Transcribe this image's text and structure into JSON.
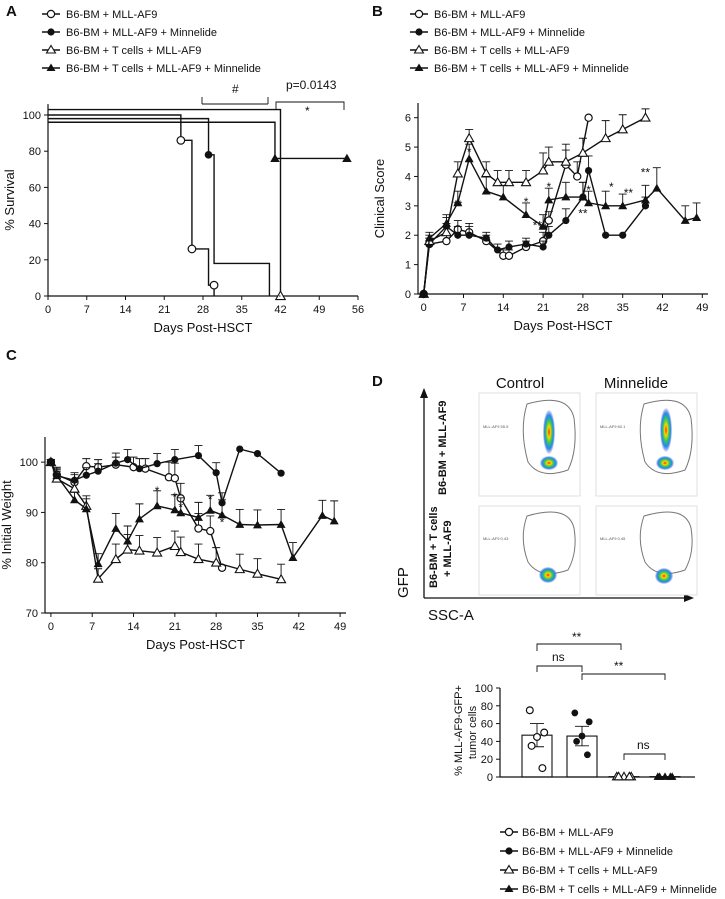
{
  "legend_labels": [
    "B6-BM + MLL-AF9",
    "B6-BM + MLL-AF9 + Minnelide",
    "B6-BM + T cells + MLL-AF9",
    "B6-BM + T cells + MLL-AF9 + Minnelide"
  ],
  "panels": {
    "A": {
      "label": "A",
      "pvalue": "p=0.0143",
      "hash": "#",
      "star": "*"
    },
    "B": {
      "label": "B"
    },
    "C": {
      "label": "C"
    },
    "D": {
      "label": "D",
      "col_control": "Control",
      "col_minnelide": "Minnelide",
      "row1": "B6-BM + MLL-AF9",
      "row2_line1": "B6-BM + T cells",
      "row2_line2": "+ MLL-AF9",
      "gfp": "GFP",
      "ssca": "SSC-A",
      "gate_top_left": "MLL-AF9 55.9",
      "gate_top_right": "MLL-AF9 60.1",
      "gate_bot_left": "MLL-AF9 0.43",
      "gate_bot_right": "MLL-AF9 0.45",
      "ns": "ns",
      "dstar": "**"
    }
  },
  "chart_data": [
    {
      "id": "A",
      "type": "line",
      "subtype": "kaplan-meier",
      "xlabel": "Days Post-HSCT",
      "ylabel": "% Survival",
      "xlim": [
        0,
        56
      ],
      "ylim": [
        0,
        100
      ],
      "xticks": [
        0,
        7,
        14,
        21,
        28,
        35,
        42,
        49,
        56
      ],
      "yticks": [
        0,
        20,
        40,
        60,
        80,
        100
      ],
      "series": [
        {
          "name": "B6-BM + MLL-AF9",
          "marker": "open-circle",
          "steps": [
            [
              0,
              100
            ],
            [
              24,
              100
            ],
            [
              24,
              86
            ],
            [
              26,
              86
            ],
            [
              26,
              26
            ],
            [
              29,
              26
            ],
            [
              29,
              6
            ],
            [
              30,
              6
            ],
            [
              30,
              0
            ]
          ],
          "marks": [
            [
              24,
              86
            ],
            [
              26,
              26
            ],
            [
              30,
              6
            ]
          ]
        },
        {
          "name": "B6-BM + MLL-AF9 + Minnelide",
          "marker": "filled-circle",
          "steps": [
            [
              0,
              98
            ],
            [
              29,
              98
            ],
            [
              29,
              78
            ],
            [
              30,
              78
            ],
            [
              30,
              18
            ],
            [
              40,
              18
            ],
            [
              40,
              0
            ]
          ],
          "marks": [
            [
              29,
              78
            ]
          ]
        },
        {
          "name": "B6-BM + T cells + MLL-AF9",
          "marker": "open-triangle",
          "steps": [
            [
              0,
              103
            ],
            [
              42,
              103
            ],
            [
              42,
              0
            ]
          ],
          "marks": [
            [
              42,
              0
            ]
          ]
        },
        {
          "name": "B6-BM + T cells + MLL-AF9 + Minnelide",
          "marker": "filled-triangle",
          "steps": [
            [
              0,
              96
            ],
            [
              41,
              96
            ],
            [
              41,
              76
            ],
            [
              54,
              76
            ]
          ],
          "marks": [
            [
              41,
              76
            ],
            [
              54,
              76
            ]
          ]
        }
      ],
      "annotations": [
        "#",
        "p=0.0143",
        "*"
      ]
    },
    {
      "id": "B",
      "type": "line",
      "xlabel": "Days Post-HSCT",
      "ylabel": "Clinical Score",
      "xlim": [
        -1,
        50
      ],
      "ylim": [
        0,
        6.5
      ],
      "xticks": [
        0,
        7,
        14,
        21,
        28,
        35,
        42,
        49
      ],
      "yticks": [
        0,
        1,
        2,
        3,
        4,
        5,
        6
      ],
      "series": [
        {
          "name": "B6-BM + MLL-AF9",
          "marker": "open-circle",
          "x": [
            0,
            1,
            4,
            6,
            8,
            11,
            14,
            15,
            18,
            21,
            22,
            25,
            27,
            29
          ],
          "y": [
            0,
            1.7,
            1.8,
            2.2,
            2.1,
            1.8,
            1.3,
            1.3,
            1.6,
            1.8,
            2.5,
            4.4,
            4.0,
            6.0
          ],
          "err": [
            0,
            0.2,
            0.2,
            0.3,
            0.3,
            0.2,
            0.2,
            0.2,
            0.2,
            0.3,
            0.3,
            0.5,
            0.5,
            0
          ]
        },
        {
          "name": "B6-BM + MLL-AF9 + Minnelide",
          "marker": "filled-circle",
          "x": [
            0,
            1,
            4,
            6,
            8,
            11,
            13,
            15,
            18,
            21,
            22,
            25,
            28,
            29,
            32,
            35,
            39
          ],
          "y": [
            0,
            1.7,
            2.3,
            2.0,
            2.0,
            1.9,
            1.5,
            1.6,
            1.7,
            1.6,
            2.0,
            2.5,
            3.3,
            4.2,
            2.0,
            2.0,
            3.0
          ],
          "err": [
            0,
            0.2,
            0.3,
            0.3,
            0.3,
            0.2,
            0.2,
            0.2,
            0.2,
            0.2,
            0.3,
            0.4,
            0.5,
            0.5,
            0,
            0,
            0.3
          ]
        },
        {
          "name": "B6-BM + T cells + MLL-AF9",
          "marker": "open-triangle",
          "x": [
            0,
            1,
            4,
            6,
            8,
            11,
            13,
            15,
            18,
            21,
            22,
            25,
            28,
            32,
            35,
            39
          ],
          "y": [
            0,
            1.8,
            2.1,
            4.1,
            5.3,
            4.1,
            3.8,
            3.8,
            3.8,
            4.2,
            4.5,
            4.5,
            4.8,
            5.3,
            5.6,
            6.0
          ],
          "err": [
            0,
            0.2,
            0.3,
            0.4,
            0.3,
            0.4,
            0.4,
            0.4,
            0.4,
            0.6,
            0.5,
            0.6,
            0.5,
            0.6,
            0.5,
            0.3
          ]
        },
        {
          "name": "B6-BM + T cells + MLL-AF9 + Minnelide",
          "marker": "filled-triangle",
          "x": [
            0,
            1,
            4,
            6,
            8,
            11,
            14,
            18,
            21,
            22,
            25,
            28,
            29,
            32,
            35,
            39,
            41,
            46,
            48
          ],
          "y": [
            0,
            1.9,
            2.4,
            3.1,
            4.6,
            3.5,
            3.3,
            2.7,
            2.3,
            3.2,
            3.3,
            3.3,
            3.1,
            3.0,
            3.0,
            3.2,
            3.6,
            2.5,
            2.6
          ],
          "err": [
            0,
            0.2,
            0.3,
            0.4,
            0.5,
            0.5,
            0.4,
            0.4,
            0.4,
            0.4,
            0.5,
            0.5,
            0.4,
            0.5,
            0.4,
            0.5,
            0.7,
            0.5,
            0.5
          ]
        }
      ],
      "annotations": [
        "*",
        "**",
        "*",
        "**",
        "*",
        "**",
        "*",
        "**",
        "*",
        "*",
        "**",
        "**"
      ]
    },
    {
      "id": "C",
      "type": "line",
      "xlabel": "Days Post-HSCT",
      "ylabel": "% Initial Weight",
      "xlim": [
        -1,
        50
      ],
      "ylim": [
        70,
        105
      ],
      "xticks": [
        0,
        7,
        14,
        21,
        28,
        35,
        42,
        49
      ],
      "yticks": [
        70,
        80,
        90,
        100
      ],
      "series": [
        {
          "name": "B6-BM + MLL-AF9",
          "marker": "open-circle",
          "x": [
            0,
            1,
            4,
            6,
            8,
            11,
            14,
            16,
            20,
            21,
            22,
            25,
            27,
            29
          ],
          "y": [
            100,
            97.5,
            96,
            99.2,
            99,
            99.5,
            99,
            98.7,
            97,
            96.8,
            92.8,
            86.8,
            86.3,
            79.0
          ],
          "err": [
            0.5,
            1.5,
            1.5,
            1.5,
            1.5,
            1.5,
            2,
            2,
            3,
            3,
            3,
            3,
            3,
            0
          ]
        },
        {
          "name": "B6-BM + MLL-AF9 + Minnelide",
          "marker": "filled-circle",
          "x": [
            0,
            1,
            4,
            6,
            8,
            11,
            13,
            15,
            18,
            21,
            25,
            28,
            29,
            32,
            35,
            39
          ],
          "y": [
            100,
            97.3,
            96.4,
            97.4,
            98.2,
            99.8,
            100.5,
            98.7,
            99.7,
            100.5,
            101.3,
            97.9,
            91.9,
            102.6,
            101.7,
            97.8
          ],
          "err": [
            0.5,
            1.2,
            1.5,
            1.5,
            1.5,
            2,
            2,
            2,
            2,
            2,
            2,
            2,
            2,
            0,
            0,
            0
          ]
        },
        {
          "name": "B6-BM + T cells + MLL-AF9",
          "marker": "open-triangle",
          "x": [
            0,
            1,
            4,
            6,
            8,
            11,
            13,
            15,
            18,
            21,
            22,
            25,
            28,
            32,
            35,
            39
          ],
          "y": [
            100,
            96.7,
            94.7,
            91.3,
            76.8,
            80.7,
            82.6,
            82.4,
            82.0,
            83.3,
            82.1,
            80.7,
            80.0,
            78.7,
            77.8,
            76.7
          ],
          "err": [
            0.5,
            1.5,
            1.5,
            2,
            2,
            3,
            3,
            3,
            3,
            3,
            3,
            3,
            3,
            3,
            3,
            3
          ]
        },
        {
          "name": "B6-BM + T cells + MLL-AF9 + Minnelide",
          "marker": "filled-triangle",
          "x": [
            0,
            1,
            4,
            6,
            8,
            11,
            13,
            15,
            18,
            21,
            22,
            25,
            27,
            29,
            32,
            35,
            39,
            41,
            46,
            48
          ],
          "y": [
            100,
            97.3,
            92.5,
            90.7,
            79.8,
            86.8,
            84.3,
            88.7,
            91.3,
            90.5,
            89.9,
            89.0,
            90.4,
            89.5,
            87.6,
            87.5,
            87.6,
            81.0,
            89.4,
            88.3
          ],
          "err": [
            0.5,
            1.5,
            1.5,
            2,
            2,
            3,
            3,
            3,
            3,
            3,
            3,
            3,
            3,
            3,
            3,
            3,
            3,
            3,
            3,
            4
          ]
        }
      ],
      "annotations": [
        "*",
        "*",
        "*",
        "*",
        "*"
      ]
    },
    {
      "id": "D",
      "type": "scatter",
      "subtype": "dot-bar",
      "ylabel": "% MLL-AF9-GFP+ tumor cells",
      "ylim": [
        0,
        100
      ],
      "yticks": [
        0,
        20,
        40,
        60,
        80,
        100
      ],
      "groups": [
        {
          "name": "B6-BM + MLL-AF9",
          "mean": 47,
          "sem": 13,
          "points": [
            75,
            50,
            45,
            35,
            10
          ]
        },
        {
          "name": "B6-BM + MLL-AF9 + Minnelide",
          "mean": 46,
          "sem": 11,
          "points": [
            72,
            62,
            46,
            40,
            25
          ]
        },
        {
          "name": "B6-BM + T cells + MLL-AF9",
          "mean": 0.4,
          "sem": 0.1,
          "points": [
            0.4,
            0.4,
            0.4,
            0.4,
            0.4
          ]
        },
        {
          "name": "B6-BM + T cells + MLL-AF9 + Minnelide",
          "mean": 0.4,
          "sem": 0.1,
          "points": [
            0.4,
            0.4,
            0.4,
            0.4,
            0.4
          ]
        }
      ],
      "comparisons": [
        "ns",
        "**",
        "**",
        "ns"
      ]
    }
  ]
}
